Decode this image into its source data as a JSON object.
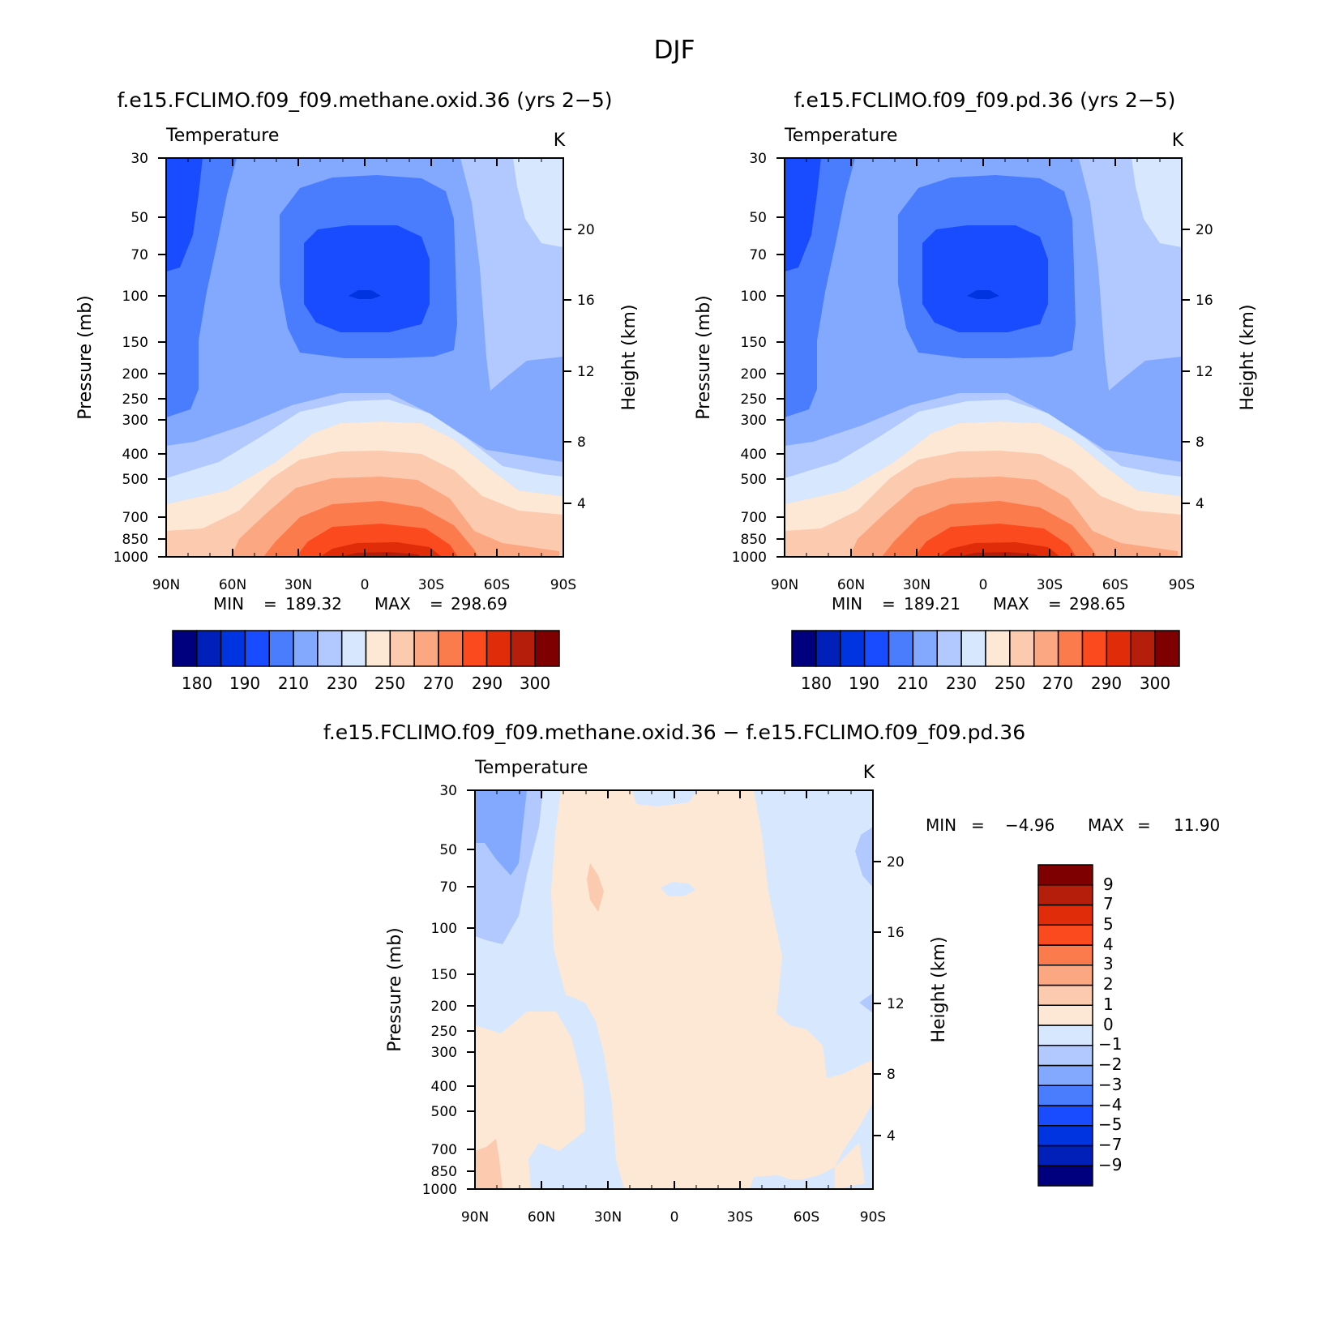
{
  "figure": {
    "title": "DJF"
  },
  "palette": {
    "absolute": [
      "#00007f",
      "#0021b9",
      "#0034e0",
      "#1a4cff",
      "#4a7cfe",
      "#82a9fe",
      "#b1c9fe",
      "#d7e8fe",
      "#fde8d5",
      "#fccaae",
      "#fba782",
      "#fb7b4d",
      "#fb4a1e",
      "#e02c08",
      "#b51e0a",
      "#7e0000"
    ],
    "diff": [
      "#00007f",
      "#0021b9",
      "#0034e0",
      "#1a4cff",
      "#4a7cfe",
      "#82a9fe",
      "#b1c9fe",
      "#d7e8fe",
      "#fde8d5",
      "#fccaae",
      "#fba782",
      "#fb7b4d",
      "#fb4a1e",
      "#e02c08",
      "#b51e0a",
      "#7e0000"
    ]
  },
  "chart_data": [
    {
      "type": "contour",
      "title": "f.e15.FCLIMO.f09_f09.methane.oxid.36 (yrs 2−5)",
      "variable": "Temperature",
      "units": "K",
      "ylabel": "Pressure (mb)",
      "y2label": "Height (km)",
      "x_ticks": [
        "90N",
        "60N",
        "30N",
        "0",
        "30S",
        "60S",
        "90S"
      ],
      "y_ticks": [
        "30",
        "50",
        "70",
        "100",
        "150",
        "200",
        "250",
        "300",
        "400",
        "500",
        "700",
        "850",
        "1000"
      ],
      "y2_ticks": [
        "20",
        "16",
        "12",
        "8",
        "4"
      ],
      "min_label": "MIN",
      "min_value": "189.32",
      "max_label": "MAX",
      "max_value": "298.69",
      "colorbar_labels": [
        "180",
        "190",
        "210",
        "230",
        "250",
        "270",
        "290",
        "300"
      ]
    },
    {
      "type": "contour",
      "title": "f.e15.FCLIMO.f09_f09.pd.36 (yrs 2−5)",
      "variable": "Temperature",
      "units": "K",
      "ylabel": "Pressure (mb)",
      "y2label": "Height (km)",
      "x_ticks": [
        "90N",
        "60N",
        "30N",
        "0",
        "30S",
        "60S",
        "90S"
      ],
      "y_ticks": [
        "30",
        "50",
        "70",
        "100",
        "150",
        "200",
        "250",
        "300",
        "400",
        "500",
        "700",
        "850",
        "1000"
      ],
      "y2_ticks": [
        "20",
        "16",
        "12",
        "8",
        "4"
      ],
      "min_label": "MIN",
      "min_value": "189.21",
      "max_label": "MAX",
      "max_value": "298.65",
      "colorbar_labels": [
        "180",
        "190",
        "210",
        "230",
        "250",
        "270",
        "290",
        "300"
      ]
    },
    {
      "type": "contour",
      "title": "f.e15.FCLIMO.f09_f09.methane.oxid.36 − f.e15.FCLIMO.f09_f09.pd.36",
      "variable": "Temperature",
      "units": "K",
      "ylabel": "Pressure (mb)",
      "y2label": "Height (km)",
      "x_ticks": [
        "90N",
        "60N",
        "30N",
        "0",
        "30S",
        "60S",
        "90S"
      ],
      "y_ticks": [
        "30",
        "50",
        "70",
        "100",
        "150",
        "200",
        "250",
        "300",
        "400",
        "500",
        "700",
        "850",
        "1000"
      ],
      "y2_ticks": [
        "20",
        "16",
        "12",
        "8",
        "4"
      ],
      "min_label": "MIN",
      "min_value": "−4.96",
      "max_label": "MAX",
      "max_value": "11.90",
      "colorbar_labels": [
        "9",
        "7",
        "5",
        "4",
        "3",
        "2",
        "1",
        "0",
        "−1",
        "−2",
        "−3",
        "−4",
        "−5",
        "−7",
        "−9"
      ]
    }
  ]
}
